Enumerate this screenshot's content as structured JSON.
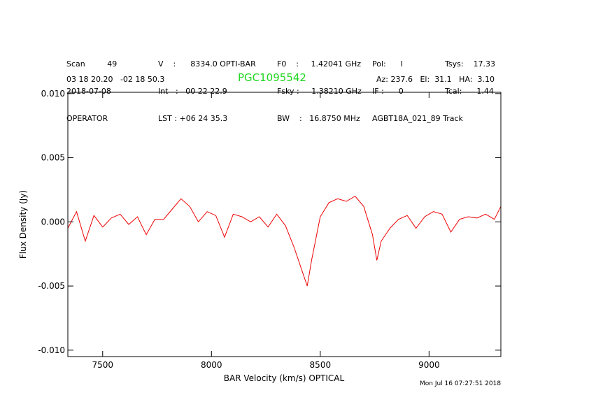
{
  "header": {
    "col1": [
      "Scan         49",
      "2018-07-08",
      "OPERATOR"
    ],
    "col2": [
      "V    :      8334.0 OPTI-BAR",
      "Int   :   00 22 22.9",
      "LST : +06 24 35.3"
    ],
    "col3": [
      "F0    :     1.42041 GHz",
      "Fsky :     1.38210 GHz",
      "BW    :   16.8750 MHz"
    ],
    "col4": [
      "Pol:      I",
      "IF :      0",
      "AGBT18A_021_89 Track"
    ],
    "col5": [
      "Tsys:    17.33",
      "Tcal:      1.44",
      ""
    ],
    "coords": "03 18 20.20   -02 18 50.3",
    "object": "PGC1095542",
    "pointing": "Az: 237.6   El:  31.1   HA:  3.10",
    "timestamp": "Mon Jul 16 07:27:51 2018"
  },
  "chart_data": {
    "type": "line",
    "xlabel": "BAR Velocity (km/s) OPTICAL",
    "ylabel": "Flux Density (Jy)",
    "xlim": [
      7340,
      9330
    ],
    "ylim": [
      -0.0105,
      0.0101
    ],
    "xticks": [
      7500,
      8000,
      8500,
      9000
    ],
    "xticklabels": [
      "7500",
      "8000",
      "8500",
      "9000"
    ],
    "yticks": [
      -0.01,
      -0.005,
      0.0,
      0.005,
      0.01
    ],
    "yticklabels": [
      "-0.010",
      "-0.005",
      "0.000",
      "0.005",
      "0.010"
    ],
    "line_color": "#ee0000",
    "series": [
      {
        "x": [
          7340,
          7380,
          7420,
          7460,
          7500,
          7540,
          7580,
          7620,
          7660,
          7700,
          7740,
          7780,
          7820,
          7860,
          7900,
          7940,
          7980,
          8020,
          8060,
          8100,
          8140,
          8180,
          8220,
          8260,
          8300,
          8340,
          8380,
          8420,
          8440,
          8460,
          8500,
          8540,
          8580,
          8620,
          8660,
          8700,
          8740,
          8760,
          8780,
          8820,
          8860,
          8900,
          8940,
          8980,
          9020,
          9060,
          9100,
          9140,
          9180,
          9220,
          9260,
          9300,
          9330
        ],
        "y": [
          -0.0005,
          0.0008,
          -0.0015,
          0.0005,
          -0.0004,
          0.0003,
          0.0006,
          -0.0002,
          0.0004,
          -0.001,
          0.0002,
          0.0002,
          0.001,
          0.0018,
          0.0012,
          0.0,
          0.0008,
          0.0005,
          -0.0012,
          0.0006,
          0.0004,
          0.0,
          0.0004,
          -0.0004,
          0.0006,
          -0.0003,
          -0.002,
          -0.004,
          -0.005,
          -0.003,
          0.0004,
          0.0015,
          0.0018,
          0.0016,
          0.002,
          0.0012,
          -0.001,
          -0.003,
          -0.0015,
          -0.0005,
          0.0002,
          0.0005,
          -0.0005,
          0.0004,
          0.0008,
          0.0006,
          -0.0008,
          0.0002,
          0.0004,
          0.0003,
          0.0006,
          0.0002,
          0.0012
        ]
      }
    ]
  }
}
